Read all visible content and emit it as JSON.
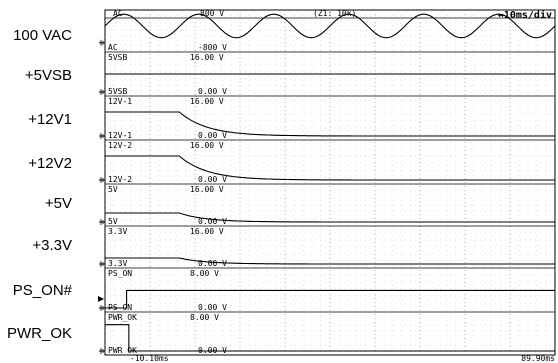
{
  "chart_data": {
    "type": "line",
    "header": {
      "left_channel": "AC",
      "left_scale": "800 V",
      "zoom": "(Z1: 10k)",
      "timebase": "↔10ms/div"
    },
    "x_axis": {
      "start_label": "-10.10ms",
      "end_label": "89.90ms",
      "range_ms": [
        -10.1,
        89.9
      ],
      "divisions": 10
    },
    "channels": [
      {
        "label": "100 VAC",
        "tag_top": "AC",
        "scale_top": "800 V",
        "tag_bottom": "AC",
        "scale_bottom": "-800 V",
        "waveform": "sine",
        "cycles": 6,
        "amplitude_frac": 0.28,
        "ground_frac": 0.78
      },
      {
        "label": "+5VSB",
        "tag_top": "5VSB",
        "scale_top": "16.00 V",
        "tag_bottom": "5VSB",
        "scale_bottom": "0.00 V",
        "waveform": "flat",
        "level_frac": 0.5
      },
      {
        "label": "+12V1",
        "tag_top": "12V-1",
        "scale_top": "16.00 V",
        "tag_bottom": "12V-1",
        "scale_bottom": "0.00 V",
        "waveform": "decay",
        "high_frac": 0.75,
        "low_frac": 0.0,
        "t_ms": [
          -10.1,
          6.4
        ],
        "tau_ms": 6.2
      },
      {
        "label": "+12V2",
        "tag_top": "12V-2",
        "scale_top": "16.00 V",
        "tag_bottom": "12V-2",
        "scale_bottom": "0.00 V",
        "waveform": "decay",
        "high_frac": 0.75,
        "low_frac": 0.0,
        "t_ms": [
          -10.1,
          6.4
        ],
        "tau_ms": 6.2
      },
      {
        "label": "+5V",
        "tag_top": "5V",
        "scale_top": "16.00 V",
        "tag_bottom": "5V",
        "scale_bottom": "0.00 V",
        "waveform": "decay",
        "high_frac": 0.3,
        "low_frac": 0.0,
        "t_ms": [
          -10.1,
          6.4
        ],
        "tau_ms": 6.0
      },
      {
        "label": "+3.3V",
        "tag_top": "3.3V",
        "scale_top": "16.00 V",
        "tag_bottom": "3.3V",
        "scale_bottom": "0.00 V",
        "waveform": "decay",
        "high_frac": 0.2,
        "low_frac": 0.0,
        "t_ms": [
          -10.1,
          6.4
        ],
        "tau_ms": 6.0
      },
      {
        "label": "PS_ON#",
        "tag_top": "PS_ON",
        "scale_top": "8.00 V",
        "tag_bottom": "PS_ON",
        "scale_bottom": "0.00 V",
        "waveform": "step",
        "low_frac": 0.0,
        "high_frac": 0.55,
        "t_ms": [
          -10.1,
          -5.3,
          89.9
        ]
      },
      {
        "label": "PWR_OK",
        "tag_top": "PWR_OK",
        "scale_top": "8.00 V",
        "tag_bottom": "PWR_OK",
        "scale_bottom": "0.00 V",
        "waveform": "step",
        "low_frac": 0.0,
        "high_frac": 0.85,
        "t_ms": [
          -10.1,
          -4.8,
          89.9
        ],
        "start": "high"
      }
    ]
  }
}
